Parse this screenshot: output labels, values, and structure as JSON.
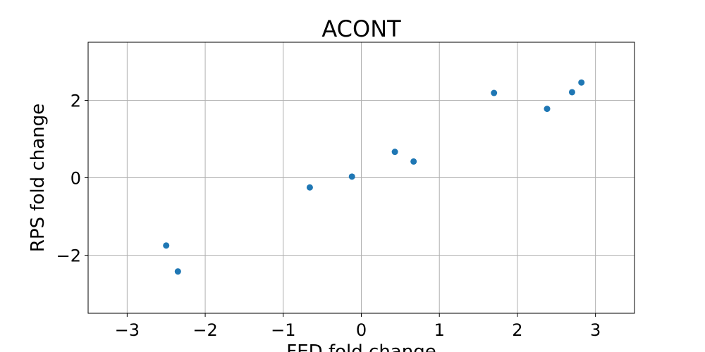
{
  "chart_data": {
    "type": "scatter",
    "title": "ACONT",
    "xlabel": "FED fold change",
    "ylabel": "RPS fold change",
    "xlim": [
      -3.5,
      3.5
    ],
    "ylim": [
      -3.5,
      3.5
    ],
    "xticks": [
      -3,
      -2,
      -1,
      0,
      1,
      2,
      3
    ],
    "yticks": [
      -2,
      0,
      2
    ],
    "xtick_labels": [
      "−3",
      "−2",
      "−1",
      "0",
      "1",
      "2",
      "3"
    ],
    "ytick_labels": [
      "−2",
      "0",
      "2"
    ],
    "grid": true,
    "marker_color": "#1f77b4",
    "points": [
      {
        "x": -2.5,
        "y": -1.75
      },
      {
        "x": -2.35,
        "y": -2.42
      },
      {
        "x": -0.66,
        "y": -0.25
      },
      {
        "x": -0.12,
        "y": 0.03
      },
      {
        "x": 0.43,
        "y": 0.67
      },
      {
        "x": 0.67,
        "y": 0.42
      },
      {
        "x": 1.7,
        "y": 2.19
      },
      {
        "x": 2.38,
        "y": 1.78
      },
      {
        "x": 2.7,
        "y": 2.21
      },
      {
        "x": 2.82,
        "y": 2.46
      }
    ]
  }
}
